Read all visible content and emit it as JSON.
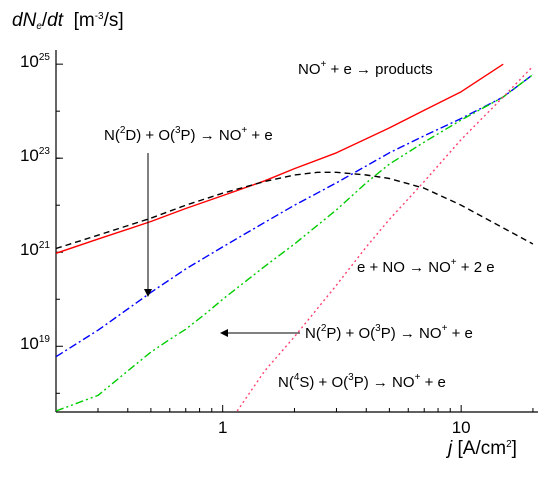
{
  "chart_data": {
    "type": "line",
    "title": "",
    "ylabel": {
      "d1": "d",
      "N": "N",
      "sub": "e",
      "slash": "/",
      "d2": "d",
      "t": "t",
      "unit_open": "[m",
      "unit_exp": "-3",
      "unit_close": "/s]"
    },
    "xlabel": {
      "j": "j",
      "unit_open": "[A/cm",
      "unit_exp": "2",
      "unit_close": "]"
    },
    "x_scale": "log",
    "y_scale": "log",
    "xlim": [
      0.2,
      21
    ],
    "ylim": [
      4e+17,
      2e+25
    ],
    "x_ticks": [
      {
        "value": 1,
        "label": "1"
      },
      {
        "value": 10,
        "label": "10"
      }
    ],
    "y_ticks": [
      {
        "value": 1e+19,
        "base": "10",
        "exp": "19"
      },
      {
        "value": 1e+21,
        "base": "10",
        "exp": "21"
      },
      {
        "value": 1e+23,
        "base": "10",
        "exp": "23"
      },
      {
        "value": 1e+25,
        "base": "10",
        "exp": "25"
      }
    ],
    "grid": false,
    "series": [
      {
        "id": "recombination",
        "color": "#ff0000",
        "dash": "solid",
        "points": [
          [
            0.2,
            9.5e+20
          ],
          [
            0.3,
            1.9e+21
          ],
          [
            0.5,
            4.5e+21
          ],
          [
            0.7,
            8.5e+21
          ],
          [
            1,
            1.6e+22
          ],
          [
            1.5,
            3.3e+22
          ],
          [
            2,
            6e+22
          ],
          [
            3,
            1.3e+23
          ],
          [
            5,
            4.4e+23
          ],
          [
            7,
            1.05e+24
          ],
          [
            10,
            2.6e+24
          ],
          [
            15,
            1e+25
          ]
        ]
      },
      {
        "id": "electron-impact",
        "color": "#000000",
        "dash": "dashed",
        "points": [
          [
            0.2,
            1.2e+21
          ],
          [
            0.3,
            2.3e+21
          ],
          [
            0.5,
            5.3e+21
          ],
          [
            0.7,
            1e+22
          ],
          [
            1,
            1.8e+22
          ],
          [
            1.5,
            3.2e+22
          ],
          [
            2,
            4.4e+22
          ],
          [
            2.5,
            5e+22
          ],
          [
            3,
            5e+22
          ],
          [
            4,
            4.4e+22
          ],
          [
            5,
            3.7e+22
          ],
          [
            7,
            2.3e+22
          ],
          [
            10,
            1e+22
          ],
          [
            15,
            3.3e+21
          ],
          [
            20,
            1.5e+21
          ]
        ]
      },
      {
        "id": "n2d",
        "color": "#0000ff",
        "dash": "dashdot",
        "points": [
          [
            0.2,
            6e+18
          ],
          [
            0.3,
            2.2e+19
          ],
          [
            0.4,
            6.2e+19
          ],
          [
            0.5,
            1.4e+20
          ],
          [
            0.7,
            4.4e+20
          ],
          [
            1,
            1.3e+21
          ],
          [
            1.5,
            4.3e+21
          ],
          [
            2,
            1e+22
          ],
          [
            3,
            3e+22
          ],
          [
            5,
            1.3e+23
          ],
          [
            7,
            3e+23
          ],
          [
            10,
            7e+23
          ],
          [
            15,
            2e+24
          ],
          [
            20,
            6e+24
          ]
        ]
      },
      {
        "id": "n2p",
        "color": "#00cc00",
        "dash": "dashdotdot",
        "points": [
          [
            0.2,
            4.2e+17
          ],
          [
            0.3,
            9e+17
          ],
          [
            0.4,
            3e+18
          ],
          [
            0.5,
            7.5e+18
          ],
          [
            0.6,
            1.4e+19
          ],
          [
            0.7,
            2.3e+19
          ],
          [
            0.85,
            5e+19
          ],
          [
            1,
            1e+20
          ],
          [
            1.5,
            5e+20
          ],
          [
            2,
            1.5e+21
          ],
          [
            3,
            8e+21
          ],
          [
            4,
            3e+22
          ],
          [
            5,
            7.5e+22
          ],
          [
            7,
            2.2e+23
          ],
          [
            10,
            6.5e+23
          ],
          [
            15,
            2e+24
          ],
          [
            20,
            6e+24
          ]
        ]
      },
      {
        "id": "n4s",
        "color": "#ff4070",
        "dash": "dotted",
        "points": [
          [
            1.15,
            4.2e+17
          ],
          [
            1.5,
            3e+18
          ],
          [
            2,
            1.6e+19
          ],
          [
            3,
            2e+20
          ],
          [
            4,
            1.3e+21
          ],
          [
            5,
            5e+21
          ],
          [
            7,
            3.2e+22
          ],
          [
            10,
            2.5e+23
          ],
          [
            15,
            2e+24
          ],
          [
            20,
            9e+24
          ]
        ]
      }
    ],
    "annotations": [
      {
        "id": "recombination",
        "parts": [
          "NO",
          "+",
          " + e → products"
        ]
      },
      {
        "id": "n2d",
        "parts": [
          "N(",
          "2",
          "D) + O(",
          "3",
          "P) → NO",
          "+",
          " + e"
        ]
      },
      {
        "id": "electron-impact",
        "parts": [
          "e + NO → NO",
          "+",
          " + 2 e"
        ]
      },
      {
        "id": "n2p",
        "parts": [
          "N(",
          "2",
          "P) + O(",
          "3",
          "P) → NO",
          "+",
          " + e"
        ]
      },
      {
        "id": "n4s",
        "parts": [
          "N(",
          "4",
          "S) + O(",
          "3",
          "P) → NO",
          "+",
          " + e"
        ]
      }
    ]
  }
}
